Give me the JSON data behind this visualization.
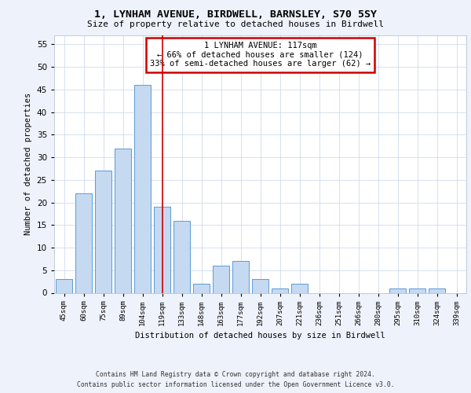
{
  "title": "1, LYNHAM AVENUE, BIRDWELL, BARNSLEY, S70 5SY",
  "subtitle": "Size of property relative to detached houses in Birdwell",
  "xlabel": "Distribution of detached houses by size in Birdwell",
  "ylabel": "Number of detached properties",
  "categories": [
    "45sqm",
    "60sqm",
    "75sqm",
    "89sqm",
    "104sqm",
    "119sqm",
    "133sqm",
    "148sqm",
    "163sqm",
    "177sqm",
    "192sqm",
    "207sqm",
    "221sqm",
    "236sqm",
    "251sqm",
    "266sqm",
    "280sqm",
    "295sqm",
    "310sqm",
    "324sqm",
    "339sqm"
  ],
  "values": [
    3,
    22,
    27,
    32,
    46,
    19,
    16,
    2,
    6,
    7,
    3,
    1,
    2,
    0,
    0,
    0,
    0,
    1,
    1,
    1,
    0
  ],
  "bar_color": "#c5d9f1",
  "bar_edge_color": "#5b9bd5",
  "property_line_x": 5.0,
  "annotation_text": "1 LYNHAM AVENUE: 117sqm\n← 66% of detached houses are smaller (124)\n33% of semi-detached houses are larger (62) →",
  "annotation_box_color": "#ffffff",
  "annotation_box_edge_color": "#cc0000",
  "property_line_color": "#cc0000",
  "ylim": [
    0,
    57
  ],
  "yticks": [
    0,
    5,
    10,
    15,
    20,
    25,
    30,
    35,
    40,
    45,
    50,
    55
  ],
  "footer_line1": "Contains HM Land Registry data © Crown copyright and database right 2024.",
  "footer_line2": "Contains public sector information licensed under the Open Government Licence v3.0.",
  "bg_color": "#eef2fa",
  "plot_bg_color": "#ffffff",
  "grid_color": "#c8d4e8"
}
